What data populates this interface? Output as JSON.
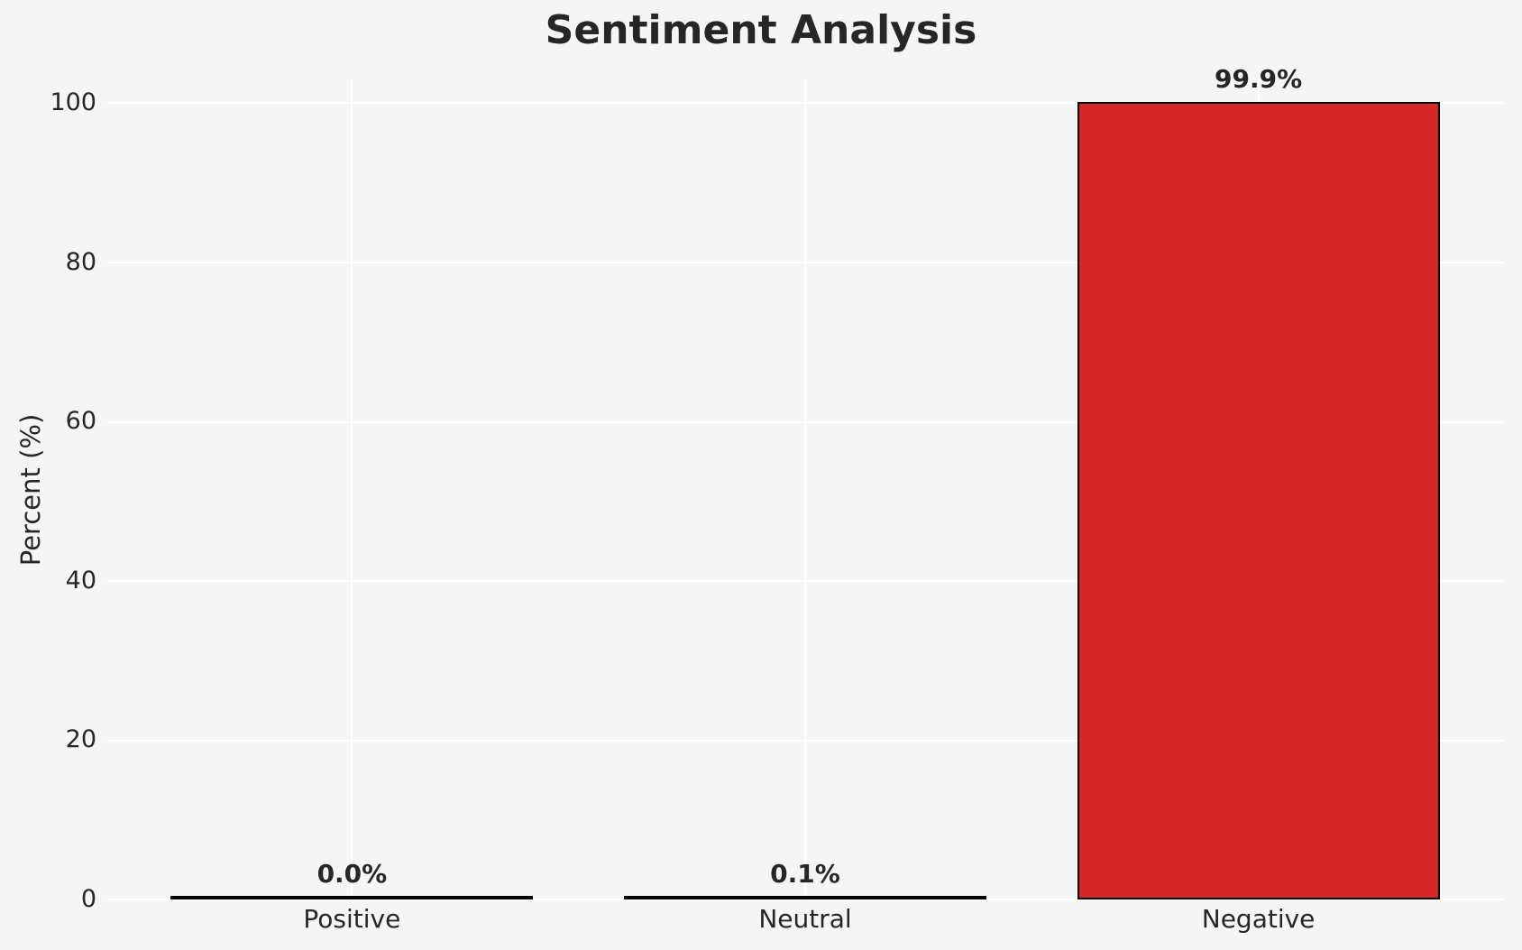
{
  "chart_data": {
    "type": "bar",
    "title": "Sentiment Analysis",
    "xlabel": "",
    "ylabel": "Percent (%)",
    "categories": [
      "Positive",
      "Neutral",
      "Negative"
    ],
    "values": [
      0.0,
      0.1,
      99.9
    ],
    "value_labels": [
      "0.0%",
      "0.1%",
      "99.9%"
    ],
    "yticks": [
      0,
      20,
      40,
      60,
      80,
      100
    ],
    "ylim": [
      0,
      103
    ],
    "grid": true,
    "legend": "none",
    "colors": {
      "bar_fill": "#d62728",
      "bar_edge": "#000000",
      "background": "#f5f5f6",
      "gridline": "#ffffff",
      "text": "#262626"
    }
  }
}
